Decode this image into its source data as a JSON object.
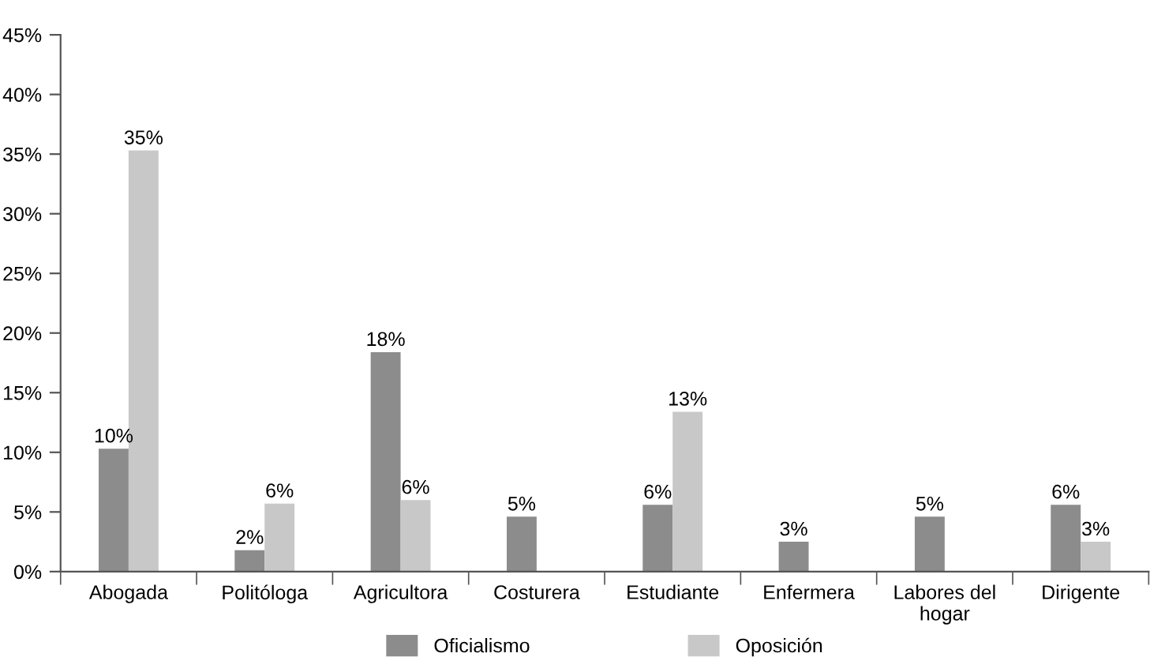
{
  "chart_data": {
    "type": "bar",
    "categories": [
      "Abogada",
      "Politóloga",
      "Agricultora",
      "Costurera",
      "Estudiante",
      "Enfermera",
      "Labores del\nhogar",
      "Dirigente"
    ],
    "series": [
      {
        "name": "Oficialismo",
        "color": "#8c8c8c",
        "values": [
          10.3,
          1.8,
          18.4,
          4.6,
          5.6,
          2.5,
          4.6,
          5.6
        ],
        "value_labels": [
          "10%",
          "2%",
          "18%",
          "5%",
          "6%",
          "3%",
          "5%",
          "6%"
        ]
      },
      {
        "name": "Oposición",
        "color": "#c8c8c8",
        "values": [
          35.3,
          5.7,
          6.0,
          null,
          13.4,
          null,
          null,
          2.5
        ],
        "value_labels": [
          "35%",
          "6%",
          "6%",
          null,
          "13%",
          null,
          null,
          "3%"
        ]
      }
    ],
    "ylim": [
      0,
      45
    ],
    "yticks": [
      {
        "value": 0,
        "label": "0%"
      },
      {
        "value": 5,
        "label": "5%"
      },
      {
        "value": 10,
        "label": "10%"
      },
      {
        "value": 15,
        "label": "15%"
      },
      {
        "value": 20,
        "label": "20%"
      },
      {
        "value": 25,
        "label": "25%"
      },
      {
        "value": 30,
        "label": "30%"
      },
      {
        "value": 35,
        "label": "35%"
      },
      {
        "value": 40,
        "label": "40%"
      },
      {
        "value": 45,
        "label": "45%"
      }
    ],
    "legend": "bottom",
    "grid": false
  }
}
